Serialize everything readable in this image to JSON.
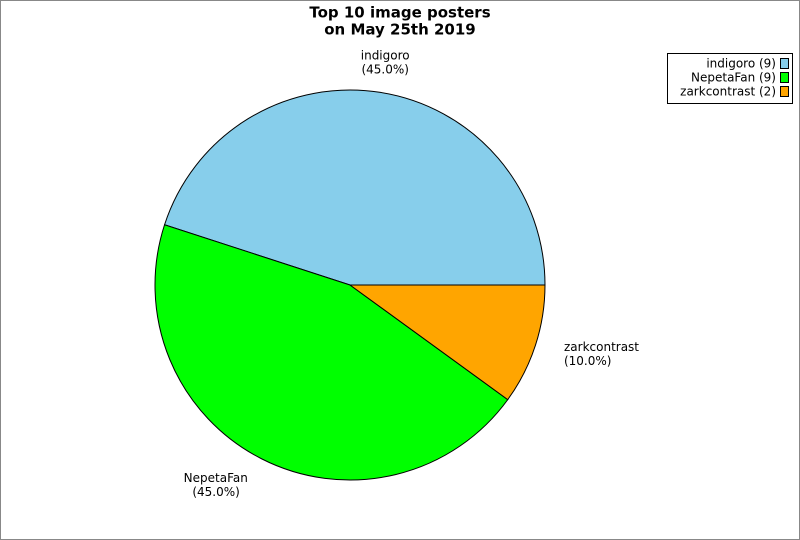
{
  "chart_data": {
    "type": "pie",
    "title": [
      "Top 10 image posters",
      "on May 25th 2019"
    ],
    "categories": [
      "indigoro",
      "NepetaFan",
      "zarkcontrast"
    ],
    "values": [
      45,
      45,
      10
    ],
    "value_labels": [
      "(45.0%)",
      "(45.0%)",
      "(10.0%)"
    ],
    "colors": [
      "#87ceeb",
      "#00ff00",
      "#ffa500"
    ],
    "legend_labels": [
      "indigoro (9)",
      "NepetaFan (9)",
      "zarkcontrast (2)"
    ],
    "legend": "upper right"
  }
}
